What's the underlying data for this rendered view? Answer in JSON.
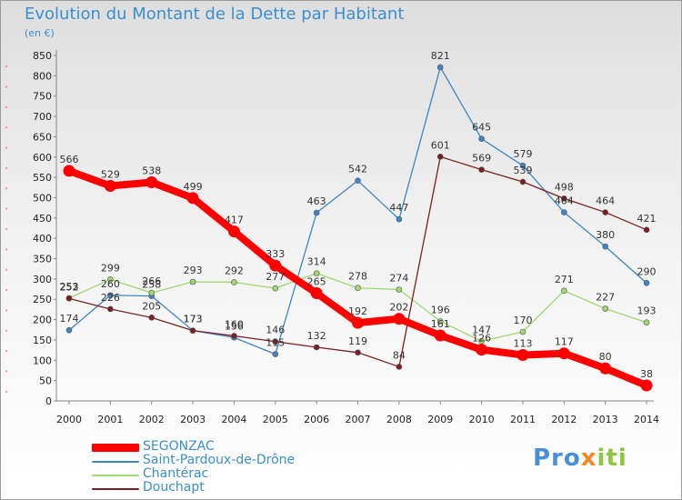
{
  "chart_data": {
    "type": "line",
    "title": "Evolution du Montant de la Dette par Habitant",
    "subtitle": "(en €)",
    "xlabel": "",
    "ylabel": "",
    "categories": [
      "2000",
      "2001",
      "2002",
      "2003",
      "2004",
      "2005",
      "2006",
      "2007",
      "2008",
      "2009",
      "2010",
      "2011",
      "2012",
      "2013",
      "2014"
    ],
    "ylim": [
      0,
      850
    ],
    "yticks": [
      0,
      50,
      100,
      150,
      200,
      250,
      300,
      350,
      400,
      450,
      500,
      550,
      600,
      650,
      700,
      750,
      800,
      850
    ],
    "grid": false,
    "legend_position": "bottom-left",
    "series": [
      {
        "name": "SEGONZAC",
        "color": "#ff0000",
        "values": [
          566,
          529,
          538,
          499,
          417,
          333,
          265,
          192,
          202,
          161,
          126,
          113,
          117,
          80,
          38
        ]
      },
      {
        "name": "Saint-Pardoux-de-Drône",
        "color": "#3d85c6",
        "values": [
          174,
          260,
          258,
          173,
          156,
          115,
          463,
          542,
          447,
          821,
          645,
          579,
          464,
          380,
          290
        ]
      },
      {
        "name": "Chantérac",
        "color": "#9fd86f",
        "values": [
          253,
          299,
          266,
          293,
          292,
          277,
          314,
          278,
          274,
          196,
          147,
          170,
          271,
          227,
          193
        ]
      },
      {
        "name": "Douchapt",
        "color": "#7b1f22",
        "values": [
          252,
          226,
          205,
          173,
          160,
          146,
          132,
          119,
          84,
          601,
          569,
          539,
          498,
          464,
          421
        ]
      }
    ]
  },
  "logo": {
    "part1": "Pro",
    "part2": "x",
    "part3": "iti"
  }
}
